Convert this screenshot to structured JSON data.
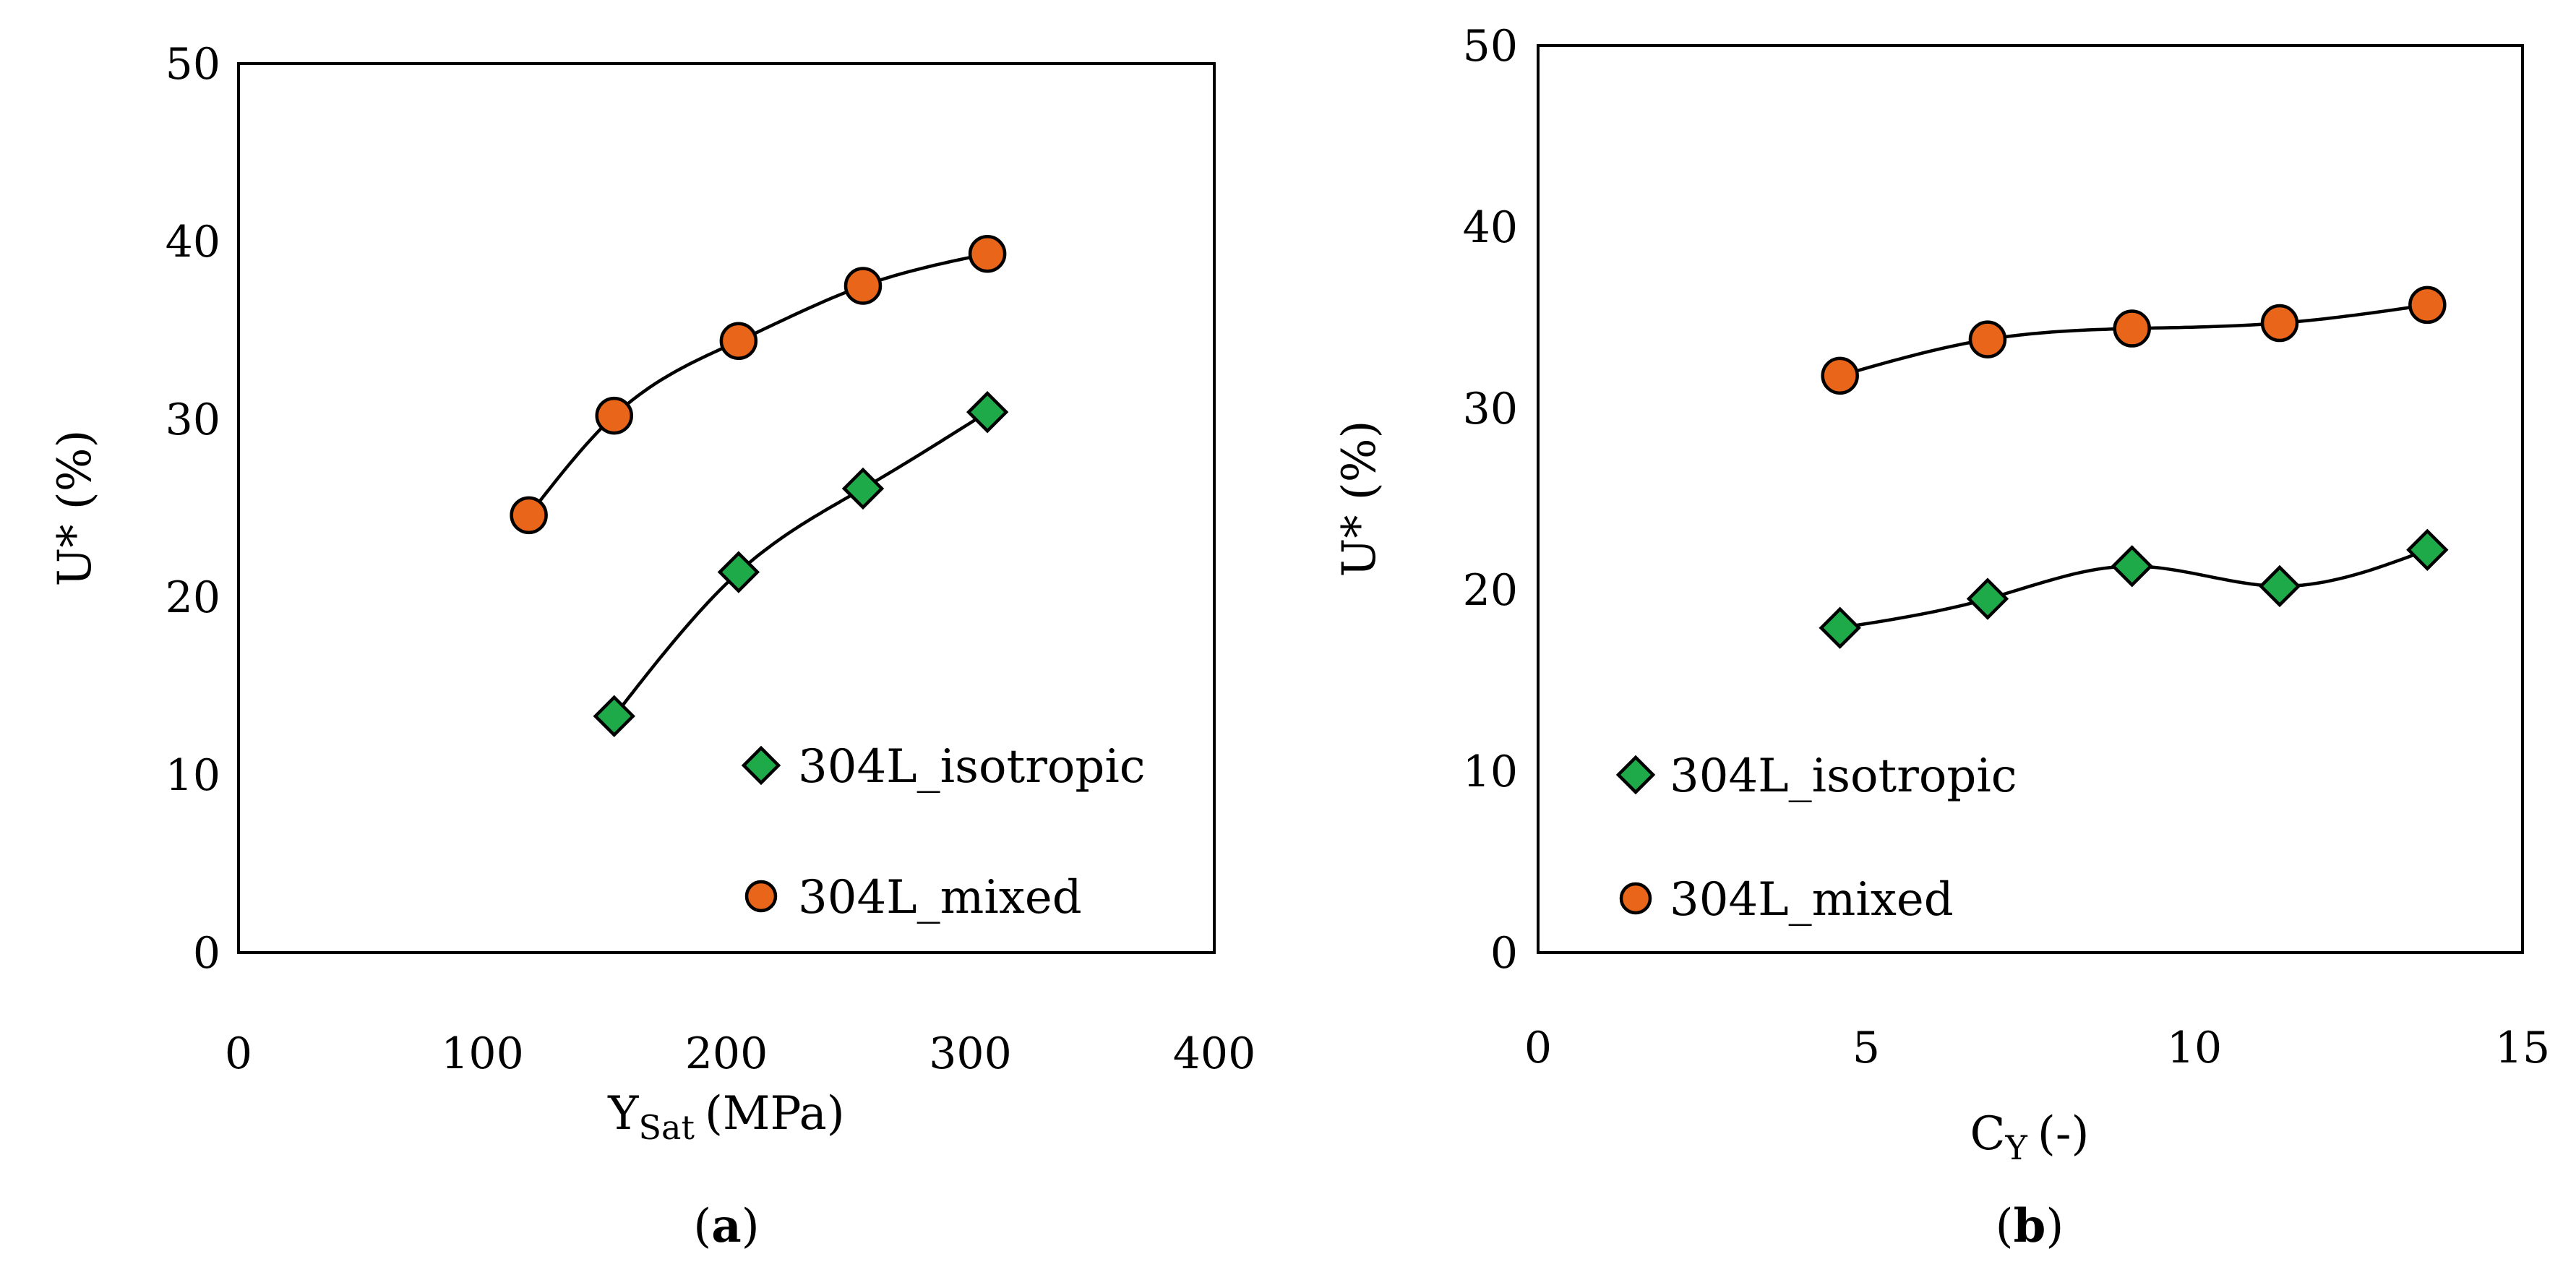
{
  "colors": {
    "isotropic": "#1faa4a",
    "mixed": "#e8651a",
    "axis": "#000000"
  },
  "chart_data": [
    {
      "type": "scatter",
      "panel_label": "a",
      "title": "",
      "xlabel": {
        "main": "Y",
        "sub": "Sat",
        "rest": "(MPa)"
      },
      "ylabel": "U* (%)",
      "xlim": [
        0,
        400
      ],
      "ylim": [
        0,
        50
      ],
      "xticks": [
        0,
        100,
        200,
        300,
        400
      ],
      "yticks": [
        0,
        10,
        20,
        30,
        40,
        50
      ],
      "grid": false,
      "legend_position": "bottom-right",
      "series": [
        {
          "name": "304L_isotropic",
          "marker": "diamond",
          "color": "#1faa4a",
          "x": [
            154,
            205,
            256,
            307
          ],
          "y": [
            13.3,
            21.4,
            26.1,
            30.4
          ]
        },
        {
          "name": "304L_mixed",
          "marker": "circle",
          "color": "#e8651a",
          "x": [
            119,
            154,
            205,
            256,
            307
          ],
          "y": [
            24.6,
            30.2,
            34.4,
            37.5,
            39.3
          ]
        }
      ]
    },
    {
      "type": "scatter",
      "panel_label": "b",
      "title": "",
      "xlabel": {
        "main": "C",
        "sub": "Y",
        "rest": "(-)"
      },
      "ylabel": "U* (%)",
      "xlim": [
        0,
        15
      ],
      "ylim": [
        0,
        50
      ],
      "xticks": [
        0,
        5,
        10,
        15
      ],
      "yticks": [
        0,
        10,
        20,
        30,
        40,
        50
      ],
      "grid": false,
      "legend_position": "bottom-left",
      "series": [
        {
          "name": "304L_isotropic",
          "marker": "diamond",
          "color": "#1faa4a",
          "x": [
            4.6,
            6.85,
            9.05,
            11.3,
            13.55
          ],
          "y": [
            17.9,
            19.5,
            21.3,
            20.2,
            22.2
          ]
        },
        {
          "name": "304L_mixed",
          "marker": "circle",
          "color": "#e8651a",
          "x": [
            4.6,
            6.85,
            9.05,
            11.3,
            13.55
          ],
          "y": [
            31.8,
            33.8,
            34.4,
            34.7,
            35.7
          ]
        }
      ]
    }
  ]
}
